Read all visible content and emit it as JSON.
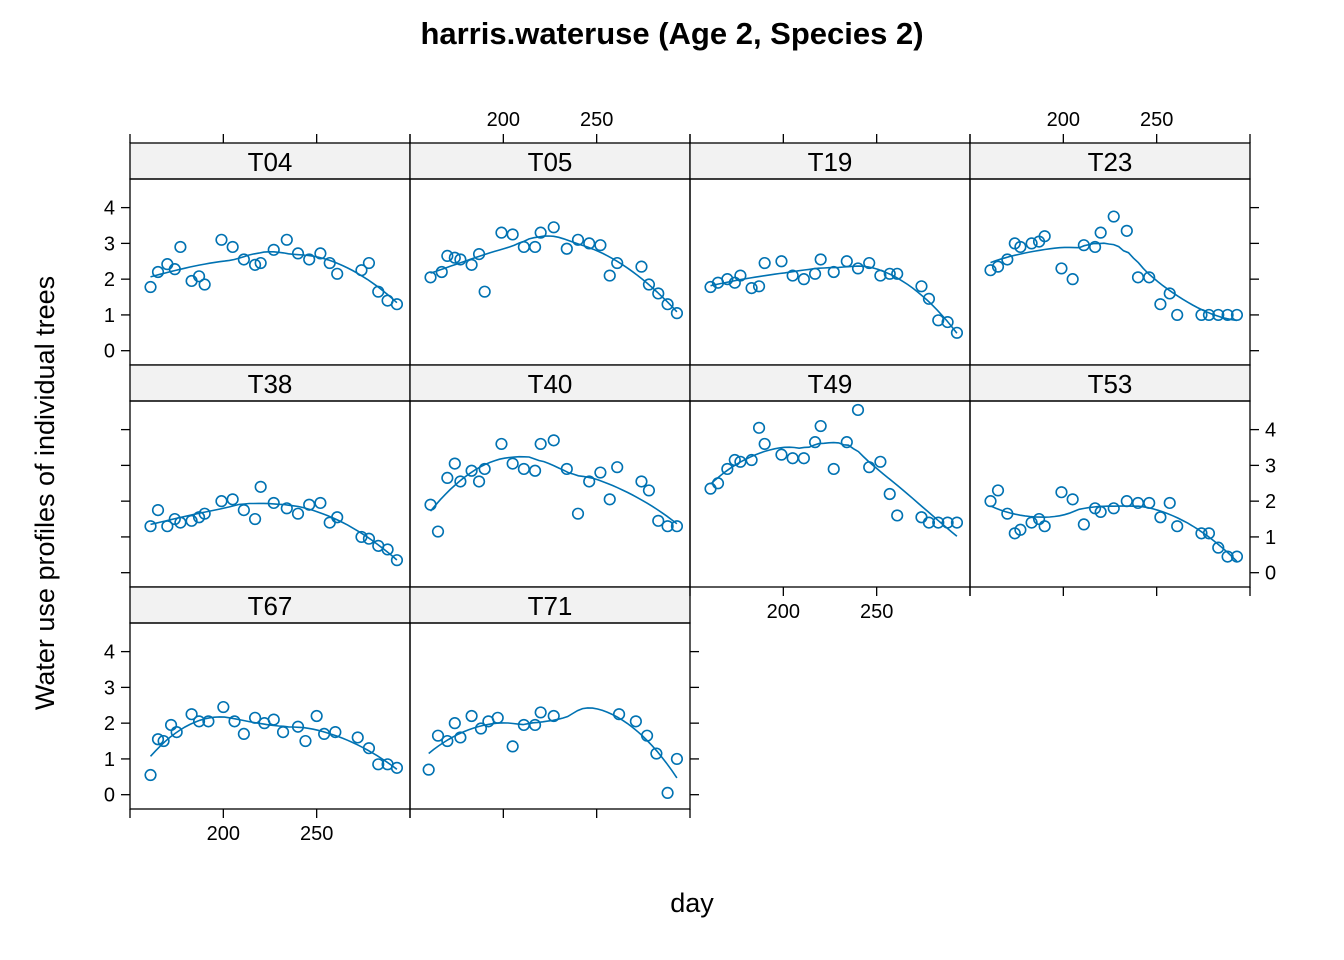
{
  "chart_data": {
    "type": "scatter",
    "title": "harris.wateruse (Age 2, Species 2)",
    "xlabel": "day",
    "ylabel": "Water use profiles of individual trees",
    "xlim": [
      150,
      300
    ],
    "ylim": [
      -0.4,
      4.8
    ],
    "x_ticks": [
      200,
      250
    ],
    "y_ticks": [
      0,
      1,
      2,
      3,
      4
    ],
    "series_color": "#0072B2",
    "strip_color": "#F2F2F2",
    "layout": {
      "columns": 4,
      "rows": 3
    },
    "fit_line": "loess",
    "panels": [
      {
        "name": "T04",
        "x": [
          161,
          165,
          170,
          174,
          177,
          183,
          187,
          190,
          199,
          205,
          211,
          217,
          220,
          227,
          234,
          240,
          246,
          252,
          257,
          261,
          274,
          278,
          283,
          288,
          293
        ],
        "y": [
          1.78,
          2.2,
          2.42,
          2.28,
          2.9,
          1.95,
          2.08,
          1.85,
          3.1,
          2.9,
          2.55,
          2.4,
          2.45,
          2.82,
          3.1,
          2.72,
          2.55,
          2.72,
          2.45,
          2.15,
          2.25,
          2.45,
          1.65,
          1.4,
          1.3
        ]
      },
      {
        "name": "T05",
        "x": [
          161,
          167,
          170,
          174,
          177,
          183,
          187,
          190,
          199,
          205,
          211,
          217,
          220,
          227,
          234,
          240,
          246,
          252,
          257,
          261,
          274,
          278,
          283,
          288,
          293
        ],
        "y": [
          2.05,
          2.2,
          2.65,
          2.6,
          2.55,
          2.4,
          2.7,
          1.65,
          3.3,
          3.25,
          2.9,
          2.9,
          3.3,
          3.45,
          2.85,
          3.1,
          3.0,
          2.95,
          2.1,
          2.45,
          2.35,
          1.85,
          1.6,
          1.3,
          1.05
        ]
      },
      {
        "name": "T19",
        "x": [
          161,
          165,
          170,
          174,
          177,
          183,
          187,
          190,
          199,
          205,
          211,
          217,
          220,
          227,
          234,
          240,
          246,
          252,
          257,
          261,
          274,
          278,
          283,
          288,
          293
        ],
        "y": [
          1.78,
          1.9,
          2.0,
          1.9,
          2.1,
          1.75,
          1.8,
          2.45,
          2.5,
          2.1,
          2.0,
          2.15,
          2.55,
          2.2,
          2.5,
          2.3,
          2.45,
          2.1,
          2.15,
          2.15,
          1.8,
          1.45,
          0.85,
          0.8,
          0.5
        ]
      },
      {
        "name": "T23",
        "x": [
          161,
          165,
          170,
          174,
          177,
          183,
          187,
          190,
          199,
          205,
          211,
          217,
          220,
          227,
          234,
          240,
          246,
          252,
          257,
          261,
          274,
          278,
          283,
          288,
          293
        ],
        "y": [
          2.25,
          2.35,
          2.55,
          3.0,
          2.9,
          3.0,
          3.05,
          3.2,
          2.3,
          2.0,
          2.95,
          2.9,
          3.3,
          3.75,
          3.35,
          2.05,
          2.05,
          1.3,
          1.6,
          1.0,
          1.0,
          1.0,
          1.0,
          1.0,
          1.0
        ]
      },
      {
        "name": "T38",
        "x": [
          161,
          165,
          170,
          174,
          177,
          183,
          187,
          190,
          199,
          205,
          211,
          217,
          220,
          227,
          234,
          240,
          246,
          252,
          257,
          261,
          274,
          278,
          283,
          288,
          293
        ],
        "y": [
          1.3,
          1.75,
          1.3,
          1.5,
          1.4,
          1.45,
          1.55,
          1.65,
          2.0,
          2.05,
          1.75,
          1.5,
          2.4,
          1.95,
          1.8,
          1.65,
          1.9,
          1.95,
          1.4,
          1.55,
          1.0,
          0.95,
          0.75,
          0.65,
          0.35
        ]
      },
      {
        "name": "T40",
        "x": [
          161,
          165,
          170,
          174,
          177,
          183,
          187,
          190,
          199,
          205,
          211,
          217,
          220,
          227,
          234,
          240,
          246,
          252,
          257,
          261,
          274,
          278,
          283,
          288,
          293
        ],
        "y": [
          1.9,
          1.15,
          2.65,
          3.05,
          2.55,
          2.85,
          2.55,
          2.9,
          3.6,
          3.05,
          2.9,
          2.85,
          3.6,
          3.7,
          2.9,
          1.65,
          2.55,
          2.8,
          2.05,
          2.95,
          2.55,
          2.3,
          1.45,
          1.3,
          1.3
        ]
      },
      {
        "name": "T49",
        "x": [
          161,
          165,
          170,
          174,
          177,
          183,
          187,
          190,
          199,
          205,
          211,
          217,
          220,
          227,
          234,
          240,
          246,
          252,
          257,
          261,
          274,
          278,
          283,
          288,
          293
        ],
        "y": [
          2.35,
          2.5,
          2.9,
          3.15,
          3.1,
          3.15,
          4.05,
          3.6,
          3.3,
          3.2,
          3.2,
          3.65,
          4.1,
          2.9,
          3.65,
          4.55,
          2.95,
          3.1,
          2.2,
          1.6,
          1.55,
          1.4,
          1.4,
          1.4,
          1.4
        ]
      },
      {
        "name": "T53",
        "x": [
          161,
          165,
          170,
          174,
          177,
          183,
          187,
          190,
          199,
          205,
          211,
          217,
          220,
          227,
          234,
          240,
          246,
          252,
          257,
          261,
          274,
          278,
          283,
          288,
          293
        ],
        "y": [
          2.0,
          2.3,
          1.65,
          1.1,
          1.2,
          1.4,
          1.5,
          1.3,
          2.25,
          2.05,
          1.35,
          1.8,
          1.7,
          1.8,
          2.0,
          1.95,
          1.95,
          1.55,
          1.95,
          1.3,
          1.1,
          1.1,
          0.7,
          0.45,
          0.45
        ]
      },
      {
        "name": "T67",
        "x": [
          161,
          165,
          168,
          172,
          175,
          183,
          187,
          192,
          200,
          206,
          211,
          217,
          222,
          227,
          232,
          240,
          244,
          250,
          254,
          260,
          272,
          278,
          283,
          288,
          293
        ],
        "y": [
          0.55,
          1.55,
          1.5,
          1.95,
          1.75,
          2.25,
          2.05,
          2.05,
          2.45,
          2.05,
          1.7,
          2.15,
          2.0,
          2.1,
          1.75,
          1.9,
          1.5,
          2.2,
          1.7,
          1.75,
          1.6,
          1.3,
          0.85,
          0.85,
          0.75
        ]
      },
      {
        "name": "T71",
        "x": [
          160,
          165,
          170,
          174,
          177,
          183,
          188,
          192,
          197,
          205,
          211,
          217,
          220,
          227,
          262,
          271,
          277,
          282,
          288,
          293
        ],
        "y": [
          0.7,
          1.65,
          1.5,
          2.0,
          1.6,
          2.2,
          1.85,
          2.05,
          2.15,
          1.35,
          1.95,
          1.95,
          2.3,
          2.2,
          2.25,
          2.05,
          1.65,
          1.15,
          0.05,
          1.0
        ]
      }
    ]
  }
}
